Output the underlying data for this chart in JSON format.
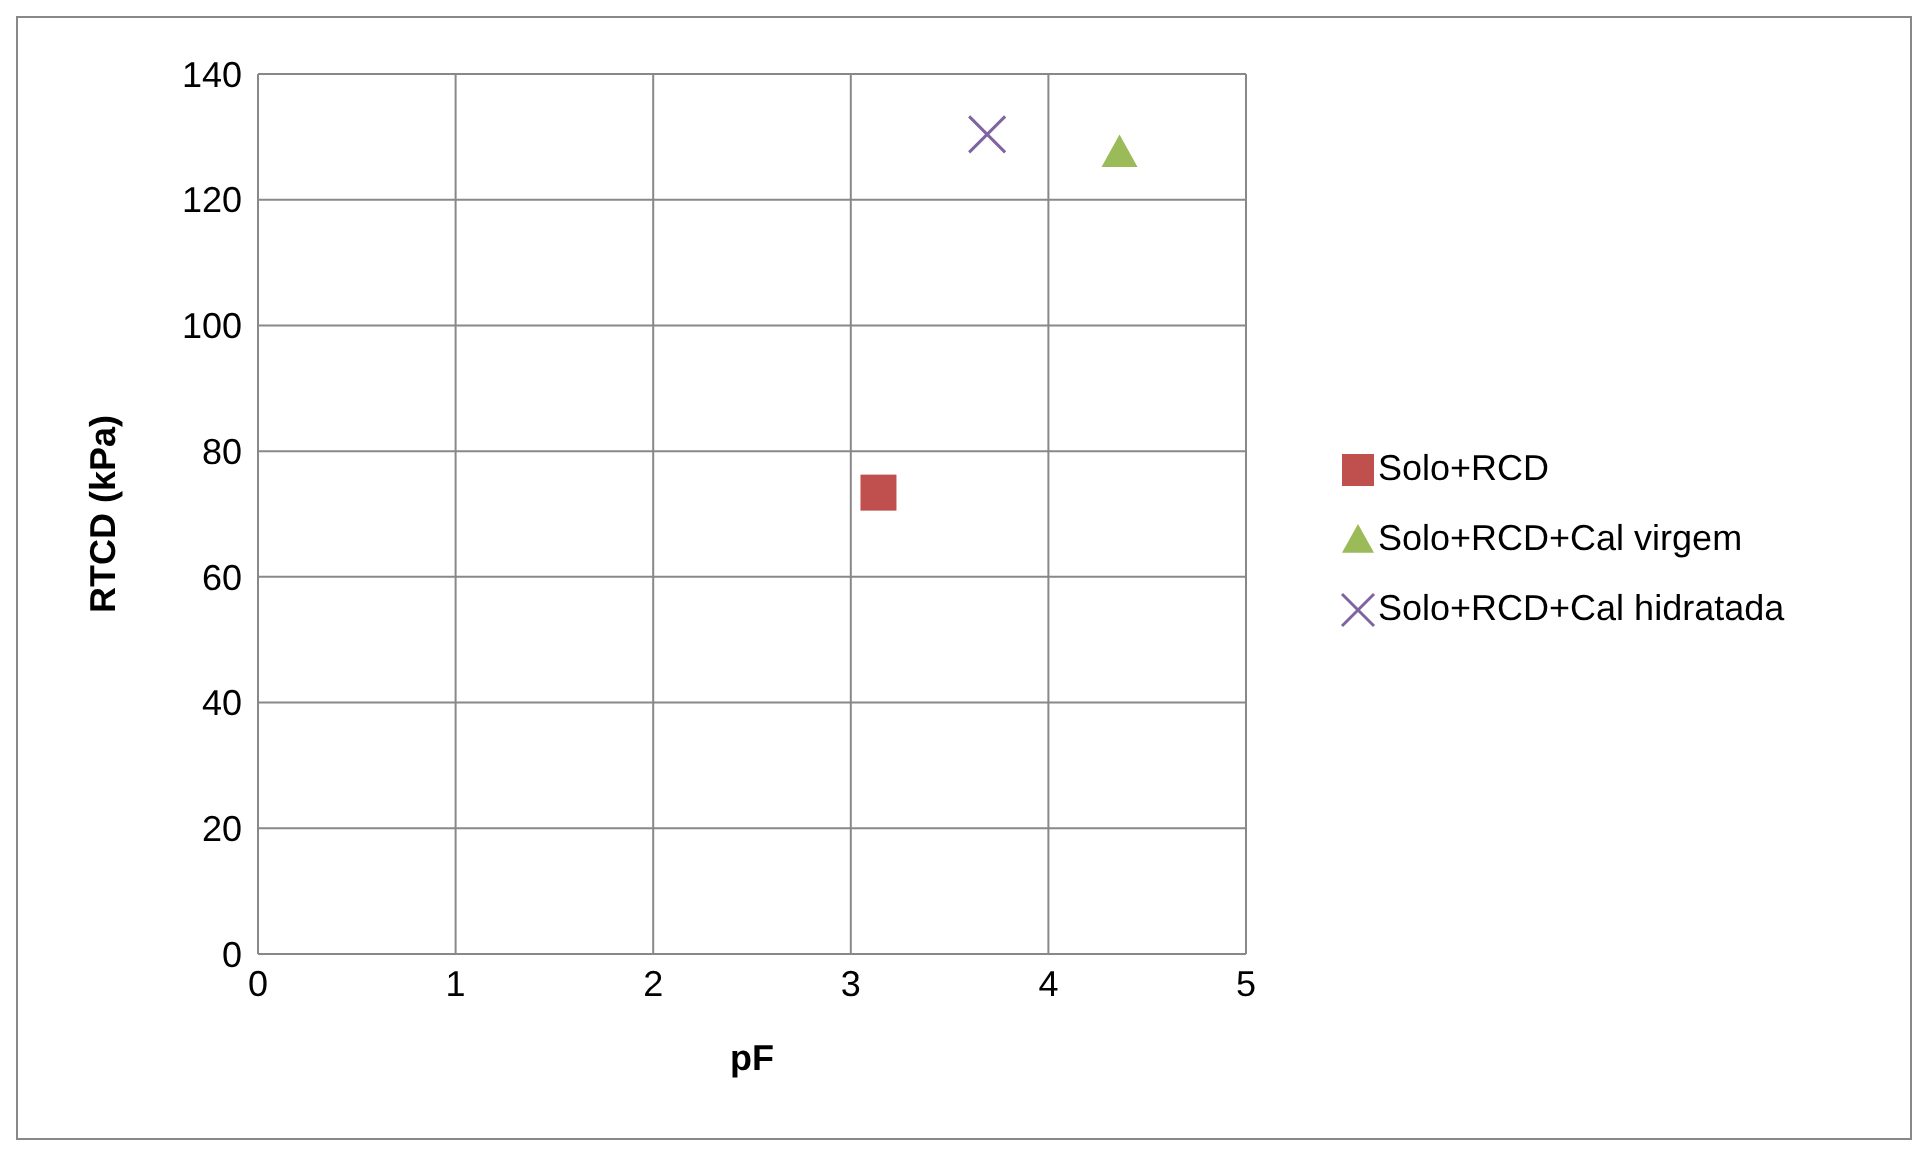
{
  "chart_data": {
    "type": "scatter",
    "xlabel": "pF",
    "ylabel": "RTCD (kPa)",
    "xlim": [
      0,
      5
    ],
    "xticks": [
      0,
      1,
      2,
      3,
      4,
      5
    ],
    "ylim": [
      0,
      140
    ],
    "yticks": [
      0,
      20,
      40,
      60,
      80,
      100,
      120,
      140
    ],
    "grid": true,
    "legend": "right",
    "series": [
      {
        "name": "Solo+RCD",
        "color": "#c0504d",
        "marker": "square",
        "x": [
          3.14
        ],
        "values": [
          73.4
        ]
      },
      {
        "name": "Solo+RCD+Cal virgem",
        "color": "#9bbb59",
        "marker": "triangle",
        "x": [
          4.36
        ],
        "values": [
          127.5
        ]
      },
      {
        "name": "Solo+RCD+Cal hidratada",
        "color": "#8064a2",
        "marker": "cross",
        "x": [
          3.69
        ],
        "values": [
          130.4
        ]
      }
    ]
  }
}
